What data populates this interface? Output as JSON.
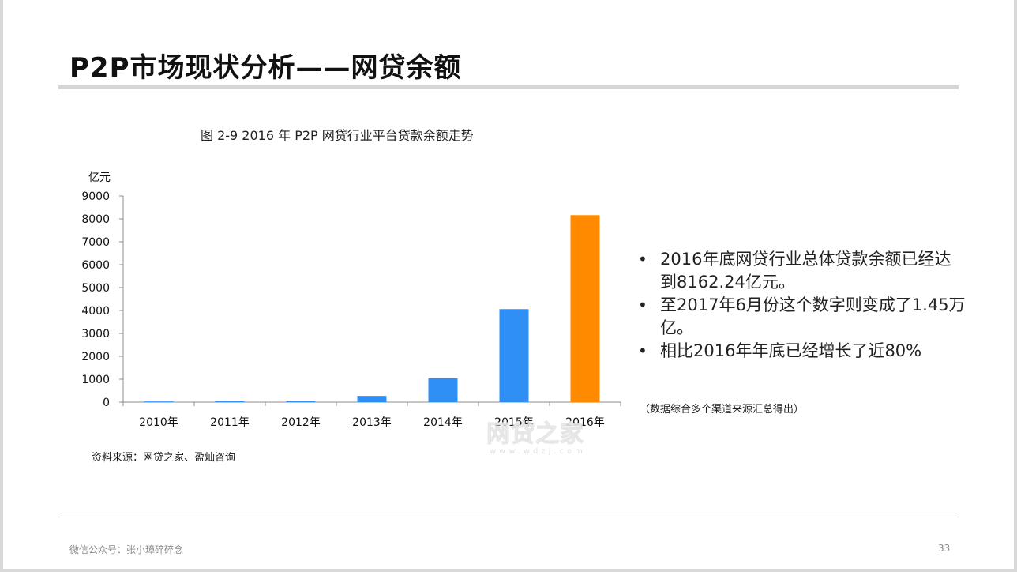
{
  "slide": {
    "title": "P2P市场现状分析——网贷余额",
    "chart_caption": "图 2-9   2016 年 P2P 网贷行业平台贷款余额走势",
    "chart_source": "资料来源：网贷之家、盈灿咨询",
    "watermark": "网贷之家",
    "watermark_sub": "www.wdzj.com",
    "bullets": [
      "2016年底网贷行业总体贷款余额已经达到8162.24亿元。",
      "至2017年6月份这个数字则变成了1.45万亿。",
      "相比2016年年底已经增长了近80%"
    ],
    "note": "（数据综合多个渠道来源汇总得出）",
    "footer": "微信公众号：张小璋碎碎念",
    "page_number": "33"
  },
  "colors": {
    "bar_default": "#2f8ff5",
    "bar_highlight": "#ff8a00",
    "axis": "#8c8c8c"
  },
  "chart_data": {
    "type": "bar",
    "categories": [
      "2010年",
      "2011年",
      "2012年",
      "2013年",
      "2014年",
      "2015年",
      "2016年"
    ],
    "values": [
      30,
      40,
      60,
      270,
      1040,
      4060,
      8162.24
    ],
    "highlight_index": 6,
    "ylabel": "亿元",
    "xlabel": "",
    "ylim": [
      0,
      9000
    ],
    "yticks": [
      0,
      1000,
      2000,
      3000,
      4000,
      5000,
      6000,
      7000,
      8000,
      9000
    ],
    "grid": false,
    "legend": "none"
  }
}
